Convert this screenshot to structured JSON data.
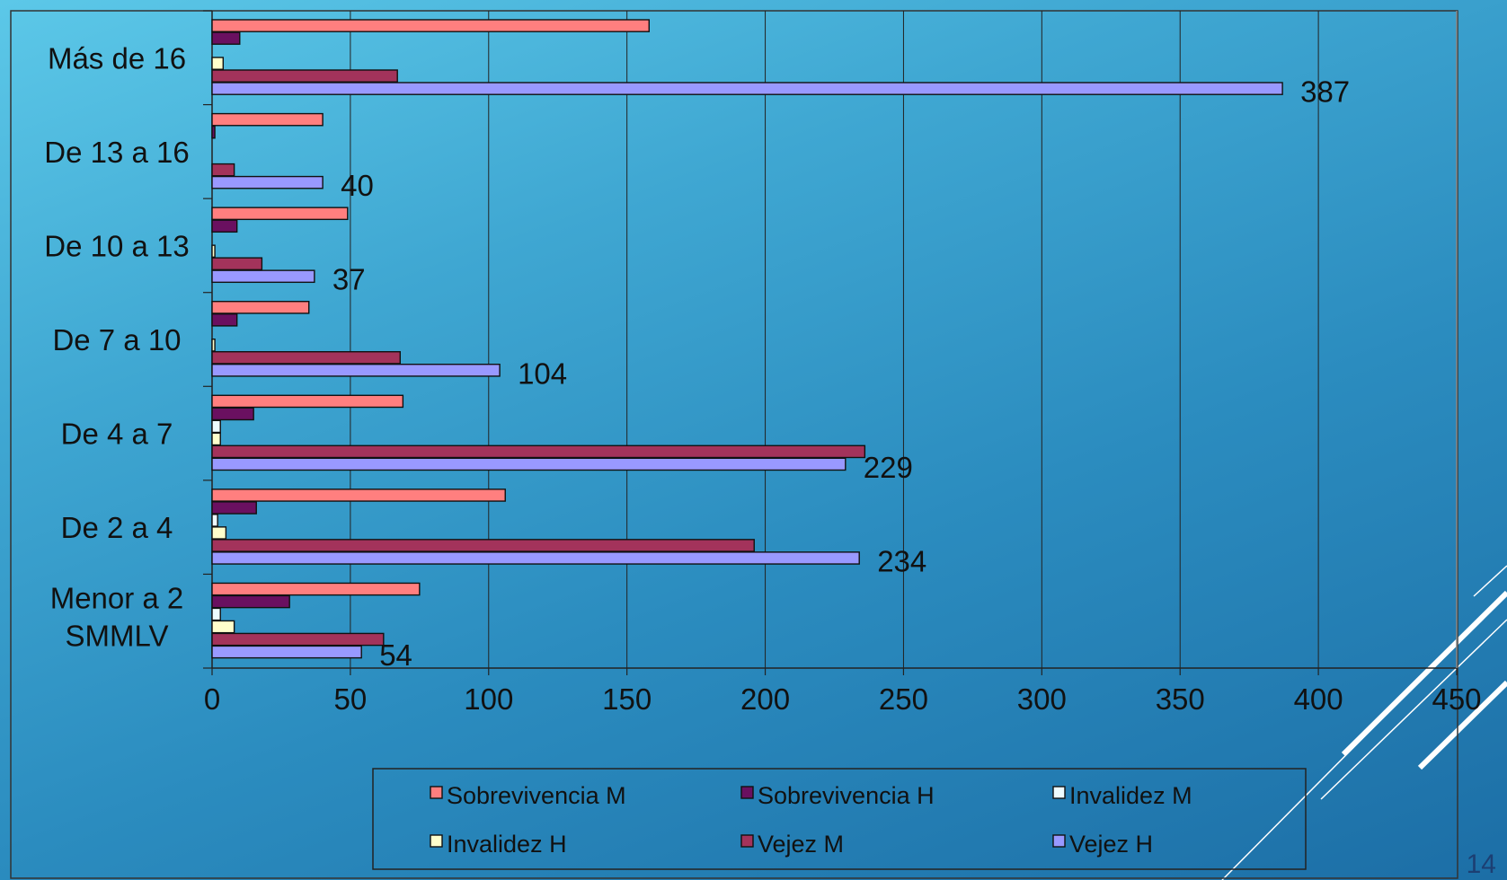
{
  "slide": {
    "page_number": "14",
    "colors": {
      "background_top": "#5cc8e8",
      "background_bottom": "#1c6ea6",
      "accent_lines": "#ffffff"
    }
  },
  "chart_data": {
    "type": "bar",
    "orientation": "horizontal",
    "title": "",
    "xlabel": "",
    "ylabel": "",
    "categories": [
      "Más de 16",
      "De 13 a 16",
      "De 10 a 13",
      "De 7 a 10",
      "De 4 a 7",
      "De 2 a 4",
      "Menor a 2 SMMLV"
    ],
    "xlim": [
      0,
      450
    ],
    "x_ticks": [
      0,
      50,
      100,
      150,
      200,
      250,
      300,
      350,
      400,
      450
    ],
    "grid": "vertical",
    "legend_position": "bottom",
    "series": [
      {
        "name": "Sobrevivencia M",
        "color": "#ff7f7f",
        "values": [
          158,
          40,
          49,
          35,
          69,
          106,
          75
        ]
      },
      {
        "name": "Sobrevivencia H",
        "color": "#6a1060",
        "values": [
          10,
          1,
          9,
          9,
          15,
          16,
          28
        ]
      },
      {
        "name": "Invalidez M",
        "color": "#eefcff",
        "values": [
          0,
          0,
          0,
          0,
          3,
          2,
          3
        ]
      },
      {
        "name": "Invalidez H",
        "color": "#ffffcc",
        "values": [
          4,
          0,
          1,
          1,
          3,
          5,
          8
        ]
      },
      {
        "name": "Vejez M",
        "color": "#a3335b",
        "values": [
          67,
          8,
          18,
          68,
          236,
          196,
          62
        ]
      },
      {
        "name": "Vejez H",
        "color": "#9999ff",
        "values": [
          387,
          40,
          37,
          104,
          229,
          234,
          54
        ]
      }
    ],
    "data_labels": [
      {
        "category": "Más de 16",
        "series": "Vejez H",
        "text": "387"
      },
      {
        "category": "De 13 a 16",
        "series": "Vejez H",
        "text": "40"
      },
      {
        "category": "De 10 a 13",
        "series": "Vejez H",
        "text": "37"
      },
      {
        "category": "De 7 a 10",
        "series": "Vejez H",
        "text": "104"
      },
      {
        "category": "De 4 a 7",
        "series": "Vejez H",
        "text": "229"
      },
      {
        "category": "De 2 a 4",
        "series": "Vejez H",
        "text": "234"
      },
      {
        "category": "Menor a 2 SMMLV",
        "series": "Vejez H",
        "text": "54"
      }
    ]
  }
}
